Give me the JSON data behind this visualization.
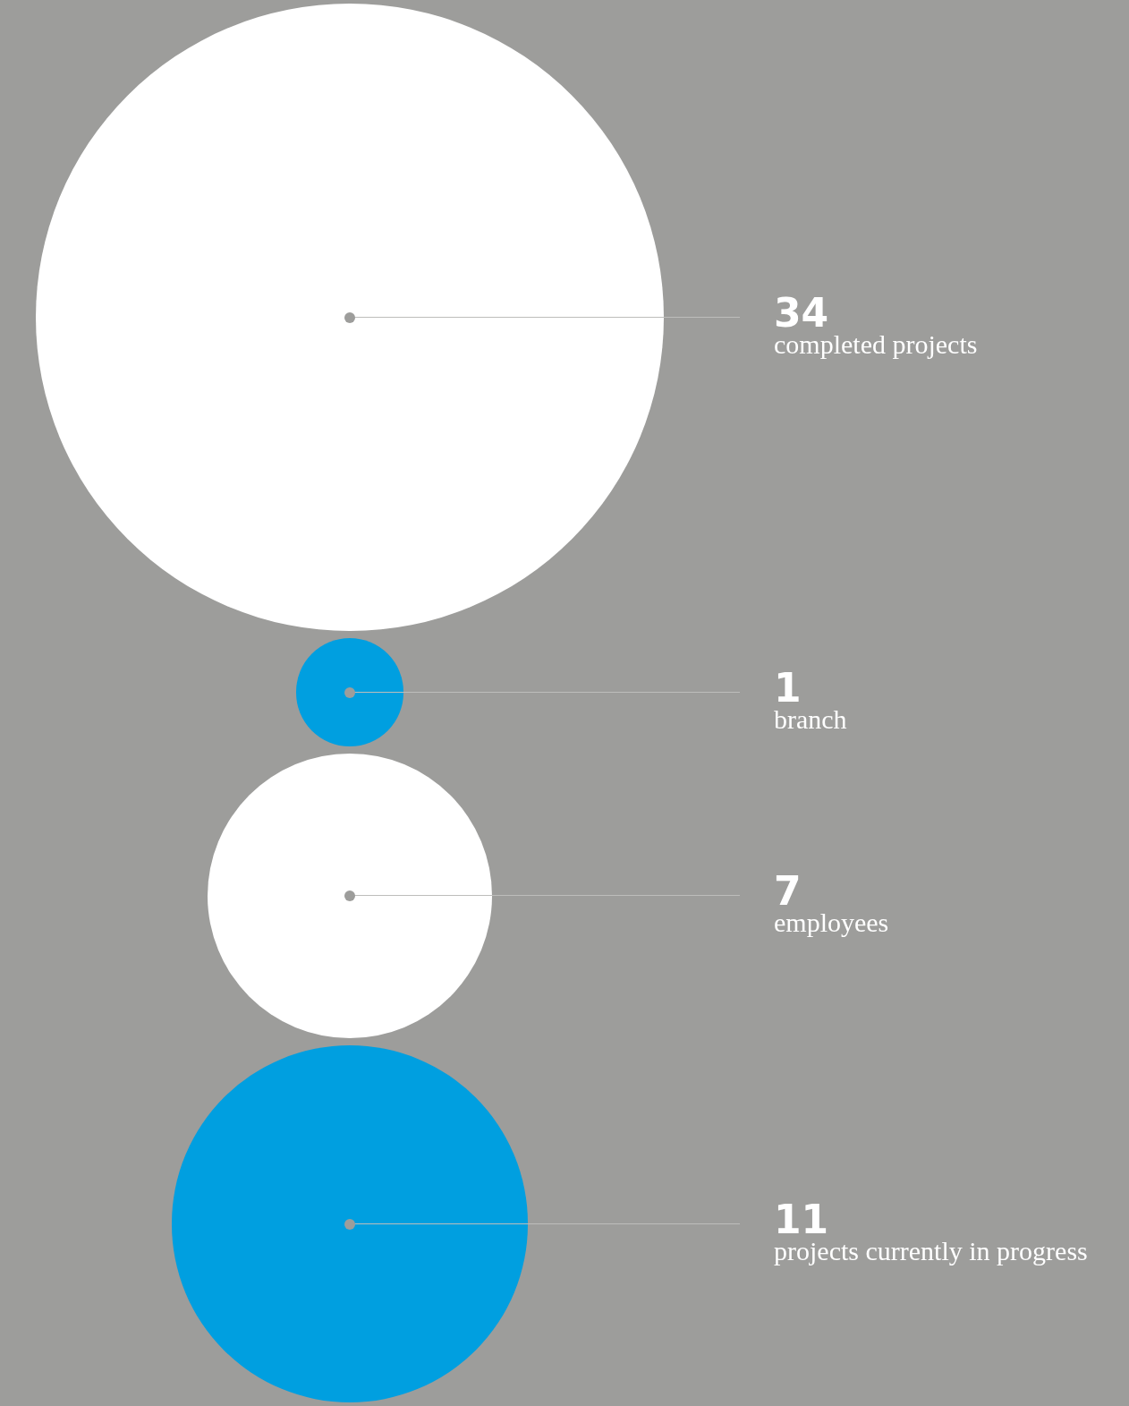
{
  "chart_data": {
    "type": "other",
    "categories": [
      "completed projects",
      "branch",
      "employees",
      "projects currently in progress"
    ],
    "values": [
      34,
      1,
      7,
      11
    ],
    "colors": [
      "#ffffff",
      "#009fe0",
      "#ffffff",
      "#009fe0"
    ],
    "data_labels": true
  }
}
